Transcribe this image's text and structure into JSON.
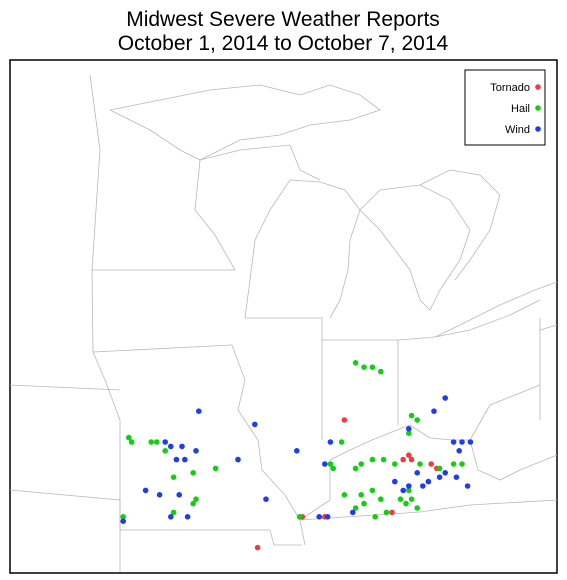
{
  "chart_data": {
    "type": "map",
    "title": "Midwest Severe Weather Reports",
    "subtitle": "October 1, 2014 to October 7, 2014",
    "legend": "upper right",
    "series": [
      {
        "name": "Tornado",
        "color": "#f23c3c",
        "points": [
          [
            -86.7,
            39.0
          ],
          [
            -84.4,
            38.2
          ],
          [
            -84.3,
            38.1
          ],
          [
            -83.6,
            38.0
          ],
          [
            -83.4,
            37.9
          ],
          [
            -88.2,
            36.8
          ],
          [
            -87.4,
            36.8
          ],
          [
            -85.0,
            36.9
          ],
          [
            -89.8,
            36.1
          ],
          [
            -84.6,
            38.1
          ]
        ]
      },
      {
        "name": "Hail",
        "color": "#10d010",
        "points": [
          [
            -86.3,
            40.3
          ],
          [
            -86.0,
            40.2
          ],
          [
            -85.7,
            40.2
          ],
          [
            -85.4,
            40.1
          ],
          [
            -84.3,
            39.1
          ],
          [
            -84.1,
            39.0
          ],
          [
            -84.4,
            38.7
          ],
          [
            -86.8,
            38.5
          ],
          [
            -87.2,
            38.0
          ],
          [
            -87.1,
            37.9
          ],
          [
            -86.3,
            37.9
          ],
          [
            -86.1,
            38.0
          ],
          [
            -85.7,
            38.1
          ],
          [
            -85.3,
            38.1
          ],
          [
            -84.9,
            38.0
          ],
          [
            -84.0,
            38.0
          ],
          [
            -83.3,
            37.9
          ],
          [
            -82.8,
            38.0
          ],
          [
            -82.5,
            38.0
          ],
          [
            -86.7,
            37.3
          ],
          [
            -86.1,
            37.3
          ],
          [
            -85.7,
            37.4
          ],
          [
            -85.4,
            37.2
          ],
          [
            -85.6,
            36.8
          ],
          [
            -85.2,
            36.9
          ],
          [
            -84.7,
            37.2
          ],
          [
            -84.4,
            37.4
          ],
          [
            -84.3,
            37.2
          ],
          [
            -84.1,
            37.0
          ],
          [
            -84.5,
            37.1
          ],
          [
            -86.3,
            37.0
          ],
          [
            -86.0,
            37.1
          ],
          [
            -94.4,
            38.6
          ],
          [
            -94.3,
            38.5
          ],
          [
            -93.6,
            38.5
          ],
          [
            -93.4,
            38.5
          ],
          [
            -93.1,
            38.3
          ],
          [
            -92.1,
            37.8
          ],
          [
            -91.3,
            37.9
          ],
          [
            -92.0,
            37.2
          ],
          [
            -92.1,
            37.1
          ],
          [
            -92.8,
            36.9
          ],
          [
            -94.6,
            36.8
          ],
          [
            -92.8,
            37.7
          ],
          [
            -88.3,
            36.8
          ]
        ]
      },
      {
        "name": "Wind",
        "color": "#1f3cf0",
        "points": [
          [
            -91.9,
            39.2
          ],
          [
            -93.1,
            38.5
          ],
          [
            -92.9,
            38.4
          ],
          [
            -92.5,
            38.4
          ],
          [
            -92.4,
            38.1
          ],
          [
            -92.0,
            38.3
          ],
          [
            -92.7,
            38.1
          ],
          [
            -90.5,
            38.1
          ],
          [
            -89.9,
            38.9
          ],
          [
            -88.4,
            38.3
          ],
          [
            -87.2,
            38.5
          ],
          [
            -89.5,
            37.2
          ],
          [
            -93.8,
            37.4
          ],
          [
            -93.3,
            37.3
          ],
          [
            -92.6,
            37.3
          ],
          [
            -92.3,
            36.8
          ],
          [
            -87.6,
            36.8
          ],
          [
            -87.3,
            36.8
          ],
          [
            -86.4,
            36.9
          ],
          [
            -83.5,
            39.2
          ],
          [
            -83.1,
            39.5
          ],
          [
            -84.4,
            38.8
          ],
          [
            -82.8,
            38.5
          ],
          [
            -82.5,
            38.5
          ],
          [
            -82.2,
            38.5
          ],
          [
            -83.3,
            37.7
          ],
          [
            -83.1,
            37.8
          ],
          [
            -82.7,
            37.7
          ],
          [
            -82.3,
            37.5
          ],
          [
            -84.1,
            37.8
          ],
          [
            -83.9,
            37.5
          ],
          [
            -83.7,
            37.6
          ],
          [
            -84.4,
            37.5
          ],
          [
            -84.6,
            37.4
          ],
          [
            -84.9,
            37.6
          ],
          [
            -82.6,
            38.3
          ],
          [
            -94.6,
            36.7
          ],
          [
            -92.9,
            36.8
          ],
          [
            -87.4,
            38.0
          ]
        ]
      }
    ]
  }
}
